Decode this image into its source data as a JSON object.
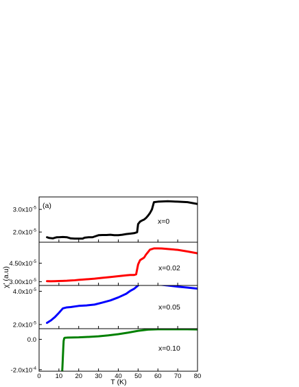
{
  "figure": {
    "panel_label": "(a)",
    "xlabel": "T (K)",
    "ylabel": "χ' (a.u)"
  },
  "chart_data": [
    {
      "type": "line",
      "annotation": "x=0",
      "color": "#000000",
      "xlim": [
        0,
        80
      ],
      "ylim": [
        1.55e-05,
        3.55e-05
      ],
      "ytick_labels": [
        {
          "value": 2e-05,
          "base": "2.0x10",
          "exp": "-5"
        },
        {
          "value": 3e-05,
          "base": "3.0x10",
          "exp": "-5"
        }
      ],
      "series": [
        {
          "x": [
            4,
            5,
            6,
            7,
            8,
            9,
            10,
            12,
            14,
            16,
            18,
            20,
            22,
            23,
            25,
            27,
            28,
            30,
            32,
            34,
            36,
            38,
            40,
            42,
            44,
            46,
            48,
            49.5,
            50,
            51,
            52,
            53,
            54,
            55,
            56,
            57,
            58,
            60,
            62,
            65,
            70,
            75,
            80
          ],
          "y": [
            1.77e-05,
            1.74e-05,
            1.73e-05,
            1.72e-05,
            1.75e-05,
            1.77e-05,
            1.77e-05,
            1.78e-05,
            1.77e-05,
            1.72e-05,
            1.71e-05,
            1.71e-05,
            1.71e-05,
            1.75e-05,
            1.77e-05,
            1.77e-05,
            1.8e-05,
            1.86e-05,
            1.87e-05,
            1.87e-05,
            1.88e-05,
            1.86e-05,
            1.86e-05,
            1.88e-05,
            1.91e-05,
            1.93e-05,
            1.95e-05,
            1.99e-05,
            2.35e-05,
            2.46e-05,
            2.51e-05,
            2.55e-05,
            2.62e-05,
            2.72e-05,
            2.84e-05,
            3e-05,
            3.32e-05,
            3.34e-05,
            3.35e-05,
            3.36e-05,
            3.34e-05,
            3.32e-05,
            3.24e-05
          ]
        }
      ]
    },
    {
      "type": "line",
      "annotation": "x=0.02",
      "color": "#ff0000",
      "xlim": [
        0,
        80
      ],
      "ylim": [
        2.7e-05,
        6.2e-05
      ],
      "ytick_labels": [
        {
          "value": 3e-05,
          "base": "3.00x10",
          "exp": "-5"
        },
        {
          "value": 4.5e-05,
          "base": "4.50x10",
          "exp": "-5"
        }
      ],
      "series": [
        {
          "x": [
            4,
            6,
            8,
            10,
            12,
            14,
            16,
            18,
            20,
            24,
            28,
            32,
            36,
            40,
            44,
            46,
            48,
            49,
            50,
            51,
            52,
            53,
            54,
            55,
            56,
            57,
            58,
            60,
            62,
            65,
            70,
            75,
            80
          ],
          "y": [
            3.05e-05,
            3.04e-05,
            3.05e-05,
            3.06e-05,
            3.07e-05,
            3.08e-05,
            3.1e-05,
            3.12e-05,
            3.15e-05,
            3.2e-05,
            3.25e-05,
            3.32e-05,
            3.38e-05,
            3.45e-05,
            3.52e-05,
            3.55e-05,
            3.55e-05,
            3.6e-05,
            4.4e-05,
            4.75e-05,
            4.85e-05,
            4.95e-05,
            5.2e-05,
            5.4e-05,
            5.6e-05,
            5.65e-05,
            5.7e-05,
            5.7e-05,
            5.69e-05,
            5.65e-05,
            5.58e-05,
            5.45e-05,
            5.3e-05
          ]
        }
      ]
    },
    {
      "type": "line",
      "annotation": "x=0.05",
      "color": "#0000ff",
      "xlim": [
        0,
        80
      ],
      "ylim": [
        1.75e-05,
        4.35e-05
      ],
      "ytick_labels": [
        {
          "value": 2e-05,
          "base": "2.0x10",
          "exp": "-5"
        },
        {
          "value": 4e-05,
          "base": "4.0x10",
          "exp": "-5"
        }
      ],
      "series": [
        {
          "x": [
            4,
            6,
            8,
            10,
            12,
            14,
            16,
            20,
            24,
            28,
            32,
            36,
            40,
            44,
            46,
            48,
            50,
            51,
            52,
            54,
            56,
            60,
            65,
            70,
            75,
            80
          ],
          "y": [
            2.1e-05,
            2.25e-05,
            2.45e-05,
            2.7e-05,
            2.97e-05,
            3.03e-05,
            3.05e-05,
            3.12e-05,
            3.15e-05,
            3.2e-05,
            3.32e-05,
            3.45e-05,
            3.63e-05,
            3.85e-05,
            4.02e-05,
            4.15e-05,
            4.35e-05,
            4.42e-05,
            4.46e-05,
            4.45e-05,
            4.44e-05,
            4.41e-05,
            4.35e-05,
            4.28e-05,
            4.22e-05,
            4.16e-05
          ]
        }
      ]
    },
    {
      "type": "line",
      "annotation": "x=0.10",
      "color": "#008000",
      "xlim": [
        0,
        80
      ],
      "ylim": [
        -0.00021,
        7e-05
      ],
      "ytick_labels": [
        {
          "value": -0.0002,
          "base": "-2.0x10",
          "exp": "-4"
        },
        {
          "value": 0.0,
          "base": "0.0",
          "exp": ""
        }
      ],
      "series": [
        {
          "x": [
            11.6,
            11.8,
            12.0,
            12.2,
            12.4,
            12.7,
            13.0,
            14,
            16,
            20,
            25,
            30,
            35,
            40,
            45,
            50,
            55,
            60,
            65,
            70,
            75,
            80
          ],
          "y": [
            -0.00023,
            -0.00018,
            -0.00012,
            -6e-05,
            -1e-05,
            7e-06,
            1e-05,
            1.1e-05,
            1.2e-05,
            1.3e-05,
            1.6e-05,
            2e-05,
            2.6e-05,
            3.4e-05,
            4.4e-05,
            5.6e-05,
            6.4e-05,
            6.6e-05,
            6.6e-05,
            6.6e-05,
            6.6e-05,
            6.5e-05
          ]
        }
      ]
    }
  ],
  "xaxis": {
    "ticks": [
      0,
      10,
      20,
      30,
      40,
      50,
      60,
      70,
      80
    ],
    "labels": [
      "0",
      "10",
      "20",
      "30",
      "40",
      "50",
      "60",
      "70",
      "80"
    ]
  }
}
